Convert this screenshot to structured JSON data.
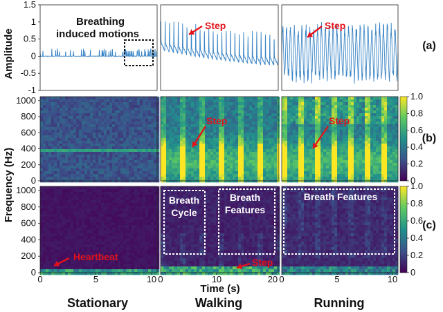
{
  "chart_data": {
    "type": "multi-panel",
    "ylabels": {
      "amplitude": "Amplitude",
      "frequency": "Frequency (Hz)"
    },
    "xlabel": "Time (s)",
    "columns": [
      "Stationary",
      "Walking",
      "Running"
    ],
    "row_labels": [
      "(a)",
      "(b)",
      "(c)"
    ],
    "amplitude_ticks": [
      "-1",
      "-0.5",
      "0",
      "0.5",
      "1",
      "1.5"
    ],
    "amplitude_ylim": [
      -1,
      1.5
    ],
    "frequency_ticks": [
      "0",
      "200",
      "400",
      "600",
      "800",
      "1000"
    ],
    "frequency_ylim": [
      0,
      1050
    ],
    "colorbar_ticks": [
      "0",
      "0.2",
      "0.4",
      "0.6",
      "0.8",
      "1.0"
    ],
    "colorbar_range": [
      0,
      1
    ],
    "xticks": {
      "stationary": [
        "0",
        "5",
        "10"
      ],
      "walking": [
        "0",
        "10",
        "20"
      ],
      "running": [
        "0",
        "5",
        "10"
      ]
    },
    "xlim": {
      "stationary": [
        0,
        10.5
      ],
      "walking": [
        0,
        21
      ],
      "running": [
        0,
        10.5
      ]
    },
    "annotations": {
      "breathing": [
        "Breathing",
        "induced motions"
      ],
      "step": "Step",
      "heartbeat": "Heartbeat",
      "breath_cycle": [
        "Breath",
        "Cycle"
      ],
      "breath_features": [
        "Breath",
        "Features"
      ],
      "breath_features_running": "Breath Features"
    },
    "series_color": "#3a85c6",
    "colormap": "viridis",
    "heartbeat_band_hz": 400
  }
}
